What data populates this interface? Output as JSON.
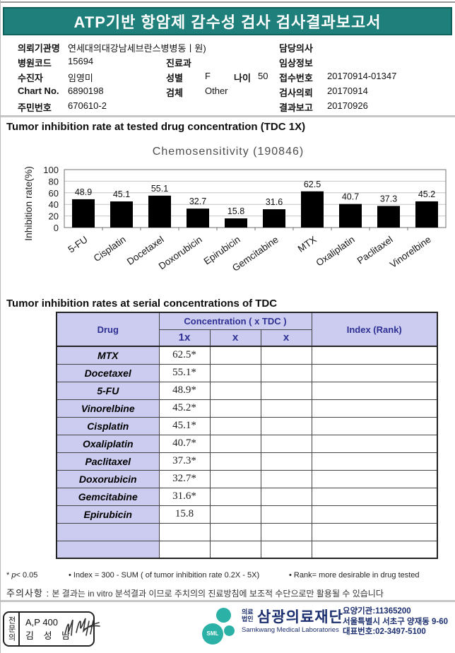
{
  "report": {
    "title": "ATP기반 항암제 감수성 검사 검사결과보고서"
  },
  "patient": {
    "org_label": "의뢰기관명",
    "org": "연세대의대강남세브란스병병동ㅣ원)",
    "hospital_code_label": "병원코드",
    "hospital_code": "15694",
    "patient_label": "수진자",
    "patient_name": "임영미",
    "chart_no_label": "Chart No.",
    "chart_no": "6890198",
    "resident_no_label": "주민번호",
    "resident_no": "670610-2",
    "dept_label": "진료과",
    "dept": "",
    "sex_label": "성별",
    "sex": "F",
    "age_label": "나이",
    "age": "50",
    "specimen_label": "검체",
    "specimen": "Other",
    "doctor_label": "담당의사",
    "doctor": "",
    "clinical_label": "임상정보",
    "clinical": "",
    "receipt_label": "접수번호",
    "receipt_no": "20170914-01347",
    "request_label": "검사의뢰",
    "request_date": "20170914",
    "report_label": "결과보고",
    "report_date": "20170926"
  },
  "sections": {
    "chart_title": "Tumor inhibition rate at tested drug concentration (TDC 1X)",
    "table_title": "Tumor inhibition rates at serial concentrations of TDC"
  },
  "chart_data": {
    "type": "bar",
    "title": "Chemosensitivity (190846)",
    "ylabel": "Inhibition rate(%)",
    "categories": [
      "5-FU",
      "Cisplatin",
      "Docetaxel",
      "Doxorubicin",
      "Epirubicin",
      "Gemcitabine",
      "MTX",
      "Oxaliplatin",
      "Paclitaxel",
      "Vinorelbine"
    ],
    "values": [
      48.9,
      45.1,
      55.1,
      32.7,
      15.8,
      31.6,
      62.5,
      40.7,
      37.3,
      45.2
    ],
    "ylim": [
      0,
      100
    ],
    "yticks": [
      0,
      20,
      40,
      60,
      80,
      100
    ],
    "grid": true,
    "legend": "none",
    "bar_color": "#000000"
  },
  "table": {
    "col_drug": "Drug",
    "col_concentration": "Concentration ( x TDC )",
    "col_index": "Index (Rank)",
    "sub_cols": [
      "1x",
      "x",
      "x"
    ],
    "rows": [
      {
        "drug": "MTX",
        "v1": "62.5*",
        "v2": "",
        "v3": "",
        "index": ""
      },
      {
        "drug": "Docetaxel",
        "v1": "55.1*",
        "v2": "",
        "v3": "",
        "index": ""
      },
      {
        "drug": "5-FU",
        "v1": "48.9*",
        "v2": "",
        "v3": "",
        "index": ""
      },
      {
        "drug": "Vinorelbine",
        "v1": "45.2*",
        "v2": "",
        "v3": "",
        "index": ""
      },
      {
        "drug": "Cisplatin",
        "v1": "45.1*",
        "v2": "",
        "v3": "",
        "index": ""
      },
      {
        "drug": "Oxaliplatin",
        "v1": "40.7*",
        "v2": "",
        "v3": "",
        "index": ""
      },
      {
        "drug": "Paclitaxel",
        "v1": "37.3*",
        "v2": "",
        "v3": "",
        "index": ""
      },
      {
        "drug": "Doxorubicin",
        "v1": "32.7*",
        "v2": "",
        "v3": "",
        "index": ""
      },
      {
        "drug": "Gemcitabine",
        "v1": "31.6*",
        "v2": "",
        "v3": "",
        "index": ""
      },
      {
        "drug": "Epirubicin",
        "v1": "15.8",
        "v2": "",
        "v3": "",
        "index": ""
      },
      {
        "drug": "",
        "v1": "",
        "v2": "",
        "v3": "",
        "index": ""
      },
      {
        "drug": "",
        "v1": "",
        "v2": "",
        "v3": "",
        "index": ""
      }
    ]
  },
  "notes": {
    "sig_star": "* ",
    "sig_p": "p",
    "sig_rest": "< 0.05",
    "index_note": "• Index = 300 - SUM ( of tumor inhibition rate 0.2X - 5X)",
    "rank_note": "• Rank= more desirable in drug tested"
  },
  "caution": {
    "label": "주의사항 :",
    "text": "본 결과는 in vitro 분석결과 이므로 주치의의 진료방침에 보조적 수단으로만 활용될 수 있습니다"
  },
  "footer": {
    "stamp_side": "전문의",
    "stamp_line1": "A,P 400",
    "stamp_line2": "김 성 남",
    "logo_text": "SML",
    "org_type_line1": "의료",
    "org_type_line2": "법인",
    "org_name": "삼광의료재단",
    "org_name_en": "Samkwang Medical Laboratories",
    "info_line1": "요양기관:11365200",
    "info_line2": "서울특별시 서초구 양재동 9-60",
    "info_line3": "대표번호:02-3497-5100"
  },
  "colors": {
    "header_bg": "#1f7f7a",
    "table_header_bg": "#ccccf0",
    "table_header_text": "#2d3092",
    "logo_teal": "#2cb1a7",
    "footer_navy": "#1c2f6e",
    "bar": "#000000"
  }
}
